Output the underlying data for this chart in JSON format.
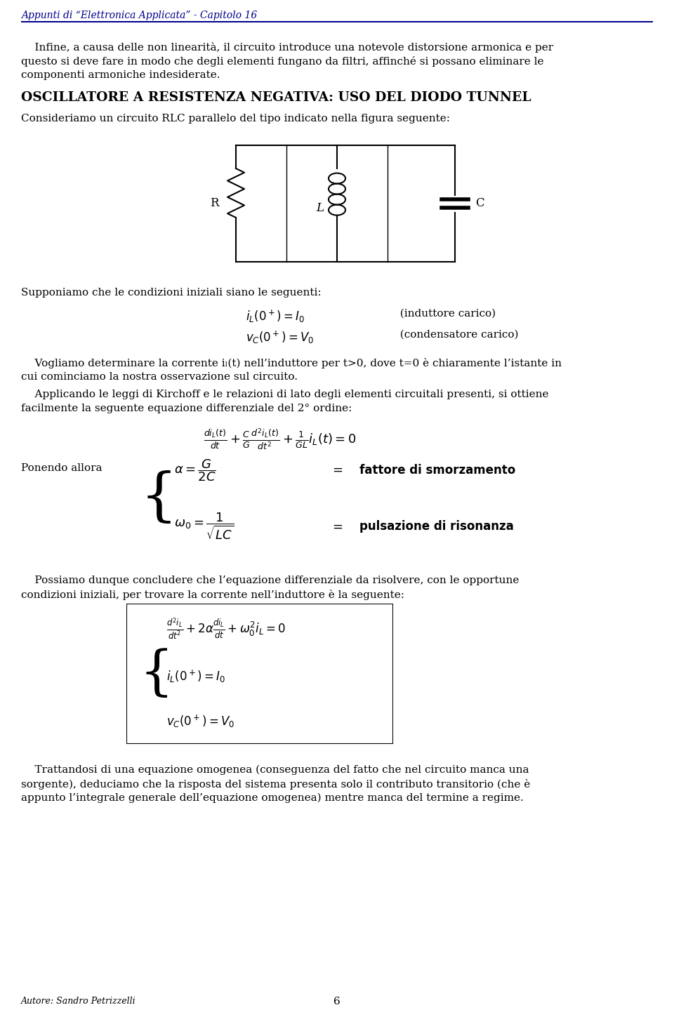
{
  "title_header": "Appunti di “Elettronica Applicata” - Capitolo 16",
  "bg_color": "#ffffff",
  "text_color": "#000000",
  "header_color": "#00008B",
  "intro_text": "Infine, a causa delle non linearità, il circuito introduce una notevole distorsione armonica e per questo si deve fare in modo che degli elementi fungano da filtri, affinché si possano eliminare le componenti armoniche indesiderate.",
  "section_title": "Oscillatore a resistenza negativa: uso del diodo tunnel",
  "section_intro": "Consideriamo un circuito RLC parallelo del tipo indicato nella figura seguente:",
  "conditions_intro": "Supponiamo che le condizioni iniziali siano le seguenti:",
  "cond1": "i_L(0⁺) = I₀   (induttore carico)",
  "cond2": "v_C(0⁺) = V₀   (condensatore carico)",
  "para1": "Vogliamo determinare la corrente iₗ(t) nell’induttore per t>0, dove t=0 è chiaramente l’istante in cui cominciamo la nostra osservazione sul circuito.",
  "para2": "Applicando le leggi di Kirchoff e le relazioni di lato degli elementi circuitali presenti, si ottiene facilmente la seguente equazione differenziale del 2° ordine:",
  "ponendo_allora": "Ponendo allora",
  "para3": "Possiamo dunque concludere che l’equazione differenziale da risolvere, con le opportune condizioni iniziali, per trovare la corrente nell’induttore è la seguente:",
  "para4": "Trattandosi di una equazione omogenea (conseguenza del fatto che nel circuito manca una sorgente), deduciamo che la risposta del sistema presenta solo il contributo transitorio (che è appunto l’integrale generale dell’equazione omogenea) mentre manca del termine a regime.",
  "footer_author": "Autore: Sandro Petrizzelli",
  "footer_page": "6"
}
